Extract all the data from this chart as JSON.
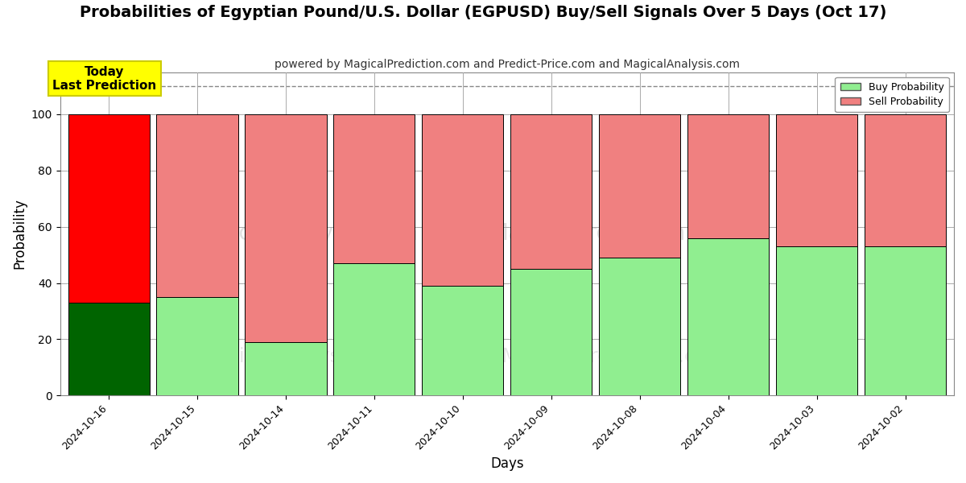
{
  "title": "Probabilities of Egyptian Pound/U.S. Dollar (EGPUSD) Buy/Sell Signals Over 5 Days (Oct 17)",
  "subtitle": "powered by MagicalPrediction.com and Predict-Price.com and MagicalAnalysis.com",
  "xlabel": "Days",
  "ylabel": "Probability",
  "categories": [
    "2024-10-16",
    "2024-10-15",
    "2024-10-14",
    "2024-10-11",
    "2024-10-10",
    "2024-10-09",
    "2024-10-08",
    "2024-10-04",
    "2024-10-03",
    "2024-10-02"
  ],
  "buy_values": [
    33,
    35,
    19,
    47,
    39,
    45,
    49,
    56,
    53,
    53
  ],
  "sell_values": [
    67,
    65,
    81,
    53,
    61,
    55,
    51,
    44,
    47,
    47
  ],
  "today_bar_buy_color": "#006400",
  "today_bar_sell_color": "#FF0000",
  "other_bar_buy_color": "#90EE90",
  "other_bar_sell_color": "#F08080",
  "bar_edge_color": "#000000",
  "background_color": "#FFFFFF",
  "grid_color": "#AAAAAA",
  "dashed_line_y": 110,
  "ylim": [
    0,
    115
  ],
  "yticks": [
    0,
    20,
    40,
    60,
    80,
    100
  ],
  "watermark1": "MagicalAnalysis.com",
  "watermark2": "MagicalPrediction.com",
  "annotation_text": "Today\nLast Prediction",
  "annotation_bg_color": "#FFFF00",
  "legend_buy_label": "Buy Probability",
  "legend_sell_label": "Sell Probability",
  "title_fontsize": 14,
  "subtitle_fontsize": 10,
  "axis_label_fontsize": 12
}
